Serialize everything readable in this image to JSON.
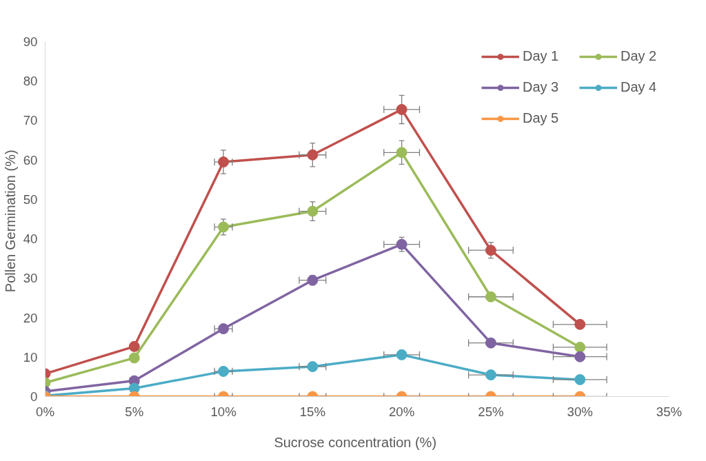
{
  "chart_data": {
    "type": "line",
    "xlabel": "Sucrose concentration  (%)",
    "ylabel": "Pollen Germination  (%)",
    "x": [
      0,
      5,
      10,
      15,
      20,
      25,
      30
    ],
    "xlim": [
      0,
      35
    ],
    "xticks": [
      {
        "value": 0,
        "label": "0%"
      },
      {
        "value": 5,
        "label": "5%"
      },
      {
        "value": 10,
        "label": "10%"
      },
      {
        "value": 15,
        "label": "15%"
      },
      {
        "value": 20,
        "label": "20%"
      },
      {
        "value": 25,
        "label": "25%"
      },
      {
        "value": 30,
        "label": "30%"
      },
      {
        "value": 35,
        "label": "35%"
      }
    ],
    "ylim": [
      0,
      90
    ],
    "yticks": [
      0,
      10,
      20,
      30,
      40,
      50,
      60,
      70,
      80,
      90
    ],
    "grid": false,
    "legend": "top right",
    "marker": "circle",
    "line_style": "solid",
    "series": [
      {
        "name": "Day 1",
        "color": "#c0504d",
        "values": [
          5.8,
          12.7,
          59.5,
          61.3,
          72.8,
          37.1,
          18.3
        ],
        "errors": [
          null,
          null,
          3,
          3,
          3.6,
          2,
          null
        ],
        "xerrors": [
          null,
          null,
          0.5,
          0.75,
          1,
          1.25,
          1.5
        ]
      },
      {
        "name": "Day 2",
        "color": "#9bbb59",
        "values": [
          3.5,
          9.8,
          43.0,
          47.0,
          61.9,
          25.3,
          12.5
        ],
        "errors": [
          null,
          null,
          2,
          2.4,
          3,
          null,
          null
        ],
        "xerrors": [
          null,
          null,
          0.5,
          0.75,
          1,
          1.25,
          1.5
        ]
      },
      {
        "name": "Day 3",
        "color": "#8064a2",
        "values": [
          1.3,
          4.0,
          17.2,
          29.5,
          38.6,
          13.6,
          10.1
        ],
        "errors": [
          null,
          null,
          1,
          1.2,
          1.8,
          null,
          null
        ],
        "xerrors": [
          null,
          0.25,
          0.5,
          0.75,
          1,
          1.25,
          1.5
        ]
      },
      {
        "name": "Day 4",
        "color": "#4bacc6",
        "values": [
          0.2,
          2.1,
          6.4,
          7.6,
          10.6,
          5.5,
          4.3
        ],
        "errors": [
          null,
          null,
          null,
          null,
          null,
          null,
          null
        ],
        "xerrors": [
          null,
          null,
          0.5,
          0.75,
          1,
          1.25,
          1.5
        ]
      },
      {
        "name": "Day 5",
        "color": "#f79646",
        "values": [
          0,
          0,
          0,
          0,
          0,
          0,
          0
        ],
        "errors": [
          null,
          null,
          null,
          null,
          null,
          null,
          null
        ],
        "xerrors": [
          null,
          null,
          0.5,
          0.75,
          1,
          1.25,
          1.5
        ]
      }
    ]
  }
}
